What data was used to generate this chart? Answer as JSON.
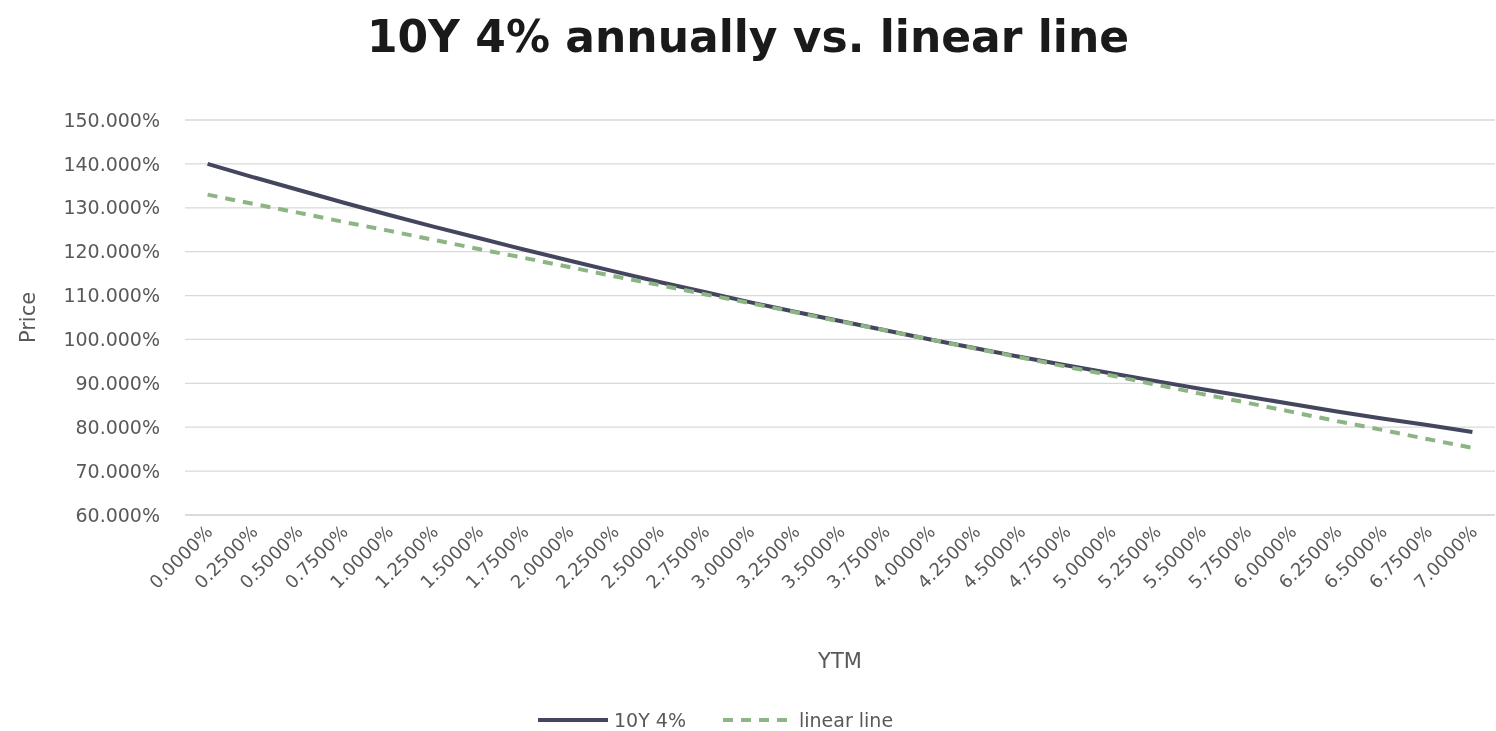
{
  "chart_data": {
    "type": "line",
    "title": "10Y 4% annually vs. linear line",
    "xlabel": "YTM",
    "ylabel": "Price",
    "categories": [
      "0.0000%",
      "0.2500%",
      "0.5000%",
      "0.7500%",
      "1.0000%",
      "1.2500%",
      "1.5000%",
      "1.7500%",
      "2.0000%",
      "2.2500%",
      "2.5000%",
      "2.7500%",
      "3.0000%",
      "3.2500%",
      "3.5000%",
      "3.7500%",
      "4.0000%",
      "4.2500%",
      "4.5000%",
      "4.7500%",
      "5.0000%",
      "5.2500%",
      "5.5000%",
      "5.7500%",
      "6.0000%",
      "6.2500%",
      "6.5000%",
      "6.7500%",
      "7.0000%"
    ],
    "series": [
      {
        "name": "10Y 4%",
        "color": "#44465e",
        "line_style": "solid",
        "values": [
          140,
          137.0,
          134.1,
          131.2,
          128.4,
          125.7,
          123.1,
          120.5,
          118.0,
          115.5,
          113.1,
          110.8,
          108.5,
          106.3,
          104.2,
          102.1,
          100,
          98.0,
          96.0,
          94.1,
          92.3,
          90.5,
          88.7,
          87.0,
          85.3,
          83.6,
          82.0,
          80.5,
          78.9
        ]
      },
      {
        "name": "linear line",
        "color": "#8db584",
        "line_style": "dashed",
        "values": [
          133.0,
          130.9,
          128.9,
          126.8,
          124.8,
          122.7,
          120.6,
          118.6,
          116.5,
          114.4,
          112.4,
          110.3,
          108.3,
          106.2,
          104.1,
          102.1,
          100,
          97.9,
          95.9,
          93.8,
          91.8,
          89.7,
          87.6,
          85.6,
          83.5,
          81.4,
          79.4,
          77.3,
          75.3
        ]
      }
    ],
    "ylim": [
      60,
      150
    ],
    "yticks": [
      {
        "value": 60,
        "label": "60.000%"
      },
      {
        "value": 70,
        "label": "70.000%"
      },
      {
        "value": 80,
        "label": "80.000%"
      },
      {
        "value": 90,
        "label": "90.000%"
      },
      {
        "value": 100,
        "label": "100.000%"
      },
      {
        "value": 110,
        "label": "110.000%"
      },
      {
        "value": 120,
        "label": "120.000%"
      },
      {
        "value": 130,
        "label": "130.000%"
      },
      {
        "value": 140,
        "label": "140.000%"
      },
      {
        "value": 150,
        "label": "150.000%"
      }
    ],
    "grid": "y",
    "legend": "bottom",
    "marker": "none"
  }
}
